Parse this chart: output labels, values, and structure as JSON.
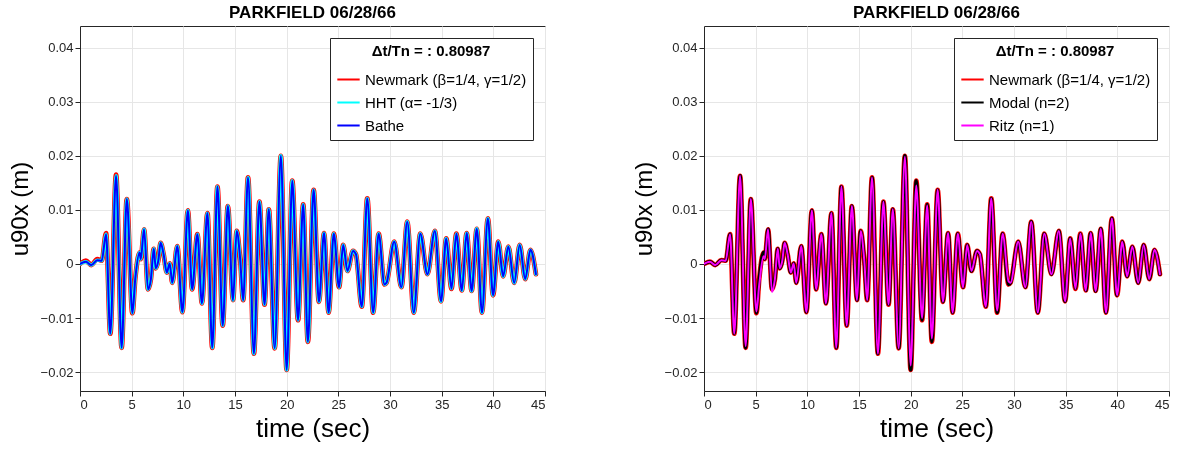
{
  "chart_data": [
    {
      "type": "line",
      "title": "PARKFIELD 06/28/66",
      "xlabel": "time (sec)",
      "ylabel": "u90x (m)",
      "legend_title": "Δt/Tn = : 0.80987",
      "legend": "top right",
      "grid": true,
      "xlim": [
        0,
        45
      ],
      "xticks": [
        0,
        5,
        10,
        15,
        20,
        25,
        30,
        35,
        40,
        45
      ],
      "ylim": [
        -0.0235,
        0.044
      ],
      "yticks": [
        -0.02,
        -0.01,
        0,
        0.01,
        0.02,
        0.03,
        0.04
      ],
      "x": [
        0,
        0.57,
        1.1,
        1.67,
        2.1,
        2.52,
        2.93,
        3.49,
        4.03,
        4.53,
        5.07,
        5.35,
        5.76,
        5.88,
        6.2,
        6.58,
        6.86,
        7.14,
        7.33,
        7.58,
        7.8,
        8.09,
        8.4,
        8.68,
        8.93,
        9.41,
        9.91,
        10.44,
        10.85,
        11.36,
        11.8,
        12.33,
        12.8,
        13.3,
        13.81,
        14.31,
        14.81,
        15.16,
        15.5,
        15.79,
        16.26,
        16.83,
        17.36,
        17.86,
        18.27,
        18.84,
        19.44,
        20.0,
        20.54,
        21.1,
        21.6,
        22.05,
        22.61,
        23.12,
        23.62,
        24.06,
        24.56,
        25.07,
        25.47,
        25.88,
        26.42,
        26.7,
        27.27,
        27.8,
        28.37,
        28.9,
        29.47,
        29.66,
        30.41,
        31.1,
        31.67,
        32.3,
        32.93,
        33.62,
        34.34,
        34.94,
        35.44,
        35.95,
        36.42,
        36.95,
        37.42,
        37.9,
        38.4,
        38.9,
        39.47,
        39.97,
        40.48,
        40.95,
        41.45,
        42.02,
        42.55,
        43.09,
        43.59,
        44.12
      ],
      "series": [
        {
          "name": "Newmark (β=1/4, γ=1/2)",
          "color": "#ff0000",
          "values": [
            0,
            0.0006,
            -0.0002,
            0.0009,
            0.0006,
            0.0057,
            -0.0129,
            0.0165,
            -0.0155,
            0.012,
            -0.0091,
            -0.0027,
            0.0021,
            0.0009,
            0.0064,
            -0.0047,
            -0.0028,
            0.0028,
            -0.0008,
            0.0006,
            0.0039,
            0.0018,
            -0.0016,
            0.0001,
            -0.0035,
            0.0033,
            -0.0089,
            0.0099,
            -0.0047,
            0.0055,
            -0.0073,
            0.0094,
            -0.0155,
            0.0143,
            -0.0114,
            0.0107,
            -0.0067,
            0.0061,
            0.0009,
            -0.0067,
            0.016,
            -0.0166,
            0.0115,
            -0.0075,
            0.0101,
            -0.0156,
            0.02,
            -0.0196,
            0.0154,
            -0.0104,
            0.011,
            -0.0144,
            0.0137,
            -0.007,
            0.0057,
            -0.009,
            0.0056,
            -0.0043,
            0.0035,
            -0.0013,
            0.0024,
            0.0018,
            -0.0079,
            0.0121,
            -0.009,
            0.0056,
            -0.0038,
            -0.0035,
            0.0041,
            -0.0043,
            0.0078,
            -0.009,
            0.0056,
            -0.0019,
            0.0061,
            -0.0069,
            0.0047,
            -0.0046,
            0.0056,
            -0.0049,
            0.0057,
            -0.005,
            0.0065,
            -0.009,
            0.0084,
            -0.0058,
            0.0041,
            -0.0023,
            0.0032,
            -0.0035,
            0.0035,
            -0.0028,
            0.0026,
            -0.0019
          ]
        },
        {
          "name": "HHT (α= -1/3)",
          "color": "#00ffff",
          "values": [
            0,
            0.0004,
            -0.0002,
            0.0007,
            0.0006,
            0.0055,
            -0.0129,
            0.0163,
            -0.0155,
            0.012,
            -0.0091,
            -0.0027,
            0.0021,
            0.0009,
            0.0064,
            -0.0047,
            -0.0028,
            0.0028,
            -0.0008,
            0.0006,
            0.0039,
            0.0018,
            -0.0016,
            0.0001,
            -0.0035,
            0.0033,
            -0.0089,
            0.0099,
            -0.0047,
            0.0055,
            -0.0073,
            0.0094,
            -0.0155,
            0.0143,
            -0.0114,
            0.0107,
            -0.0067,
            0.0061,
            0.0009,
            -0.0067,
            0.016,
            -0.0166,
            0.0115,
            -0.0075,
            0.0101,
            -0.0156,
            0.02,
            -0.0196,
            0.0154,
            -0.0104,
            0.011,
            -0.0144,
            0.0137,
            -0.007,
            0.0057,
            -0.009,
            0.0056,
            -0.0043,
            0.0035,
            -0.0013,
            0.0024,
            0.0018,
            -0.0079,
            0.0121,
            -0.009,
            0.0056,
            -0.0038,
            -0.0035,
            0.0041,
            -0.0043,
            0.0078,
            -0.009,
            0.0056,
            -0.0019,
            0.0061,
            -0.0069,
            0.0047,
            -0.0046,
            0.0056,
            -0.0049,
            0.0057,
            -0.005,
            0.0065,
            -0.009,
            0.0084,
            -0.0058,
            0.0041,
            -0.0023,
            0.0032,
            -0.0035,
            0.0035,
            -0.0028,
            0.0026,
            -0.0019
          ]
        },
        {
          "name": "Bathe",
          "color": "#0000ff",
          "values": [
            0,
            0.0004,
            -0.0002,
            0.0007,
            0.0006,
            0.0055,
            -0.0129,
            0.0163,
            -0.0155,
            0.012,
            -0.0091,
            -0.0027,
            0.0021,
            0.0009,
            0.0064,
            -0.0047,
            -0.0028,
            0.0028,
            -0.0008,
            0.0006,
            0.0039,
            0.0018,
            -0.0016,
            0.0001,
            -0.0035,
            0.0033,
            -0.0089,
            0.0099,
            -0.0047,
            0.0055,
            -0.0073,
            0.0094,
            -0.0155,
            0.0143,
            -0.0114,
            0.0107,
            -0.0067,
            0.0061,
            0.0009,
            -0.0067,
            0.016,
            -0.0166,
            0.0115,
            -0.0075,
            0.0101,
            -0.0156,
            0.02,
            -0.0196,
            0.0154,
            -0.0104,
            0.011,
            -0.0144,
            0.0137,
            -0.007,
            0.0057,
            -0.009,
            0.0056,
            -0.0043,
            0.0035,
            -0.0013,
            0.0024,
            0.0018,
            -0.0079,
            0.0121,
            -0.009,
            0.0056,
            -0.0038,
            -0.0035,
            0.0041,
            -0.0043,
            0.0078,
            -0.009,
            0.0056,
            -0.0019,
            0.0061,
            -0.0069,
            0.0047,
            -0.0046,
            0.0056,
            -0.0049,
            0.0057,
            -0.005,
            0.0065,
            -0.009,
            0.0084,
            -0.0058,
            0.0041,
            -0.0023,
            0.0032,
            -0.0035,
            0.0035,
            -0.0028,
            0.0026,
            -0.0019
          ]
        }
      ]
    },
    {
      "type": "line",
      "title": "PARKFIELD 06/28/66",
      "xlabel": "time (sec)",
      "ylabel": "u90x (m)",
      "legend_title": "Δt/Tn = : 0.80987",
      "legend": "top right",
      "grid": true,
      "xlim": [
        0,
        45
      ],
      "xticks": [
        0,
        5,
        10,
        15,
        20,
        25,
        30,
        35,
        40,
        45
      ],
      "ylim": [
        -0.0235,
        0.044
      ],
      "yticks": [
        -0.02,
        -0.01,
        0,
        0.01,
        0.02,
        0.03,
        0.04
      ],
      "x": [
        0,
        0.57,
        1.1,
        1.67,
        2.1,
        2.52,
        2.93,
        3.49,
        4.03,
        4.53,
        5.07,
        5.35,
        5.76,
        5.88,
        6.2,
        6.58,
        6.86,
        7.14,
        7.33,
        7.58,
        7.8,
        8.09,
        8.4,
        8.68,
        8.93,
        9.41,
        9.91,
        10.44,
        10.85,
        11.36,
        11.8,
        12.33,
        12.8,
        13.3,
        13.81,
        14.31,
        14.81,
        15.16,
        15.5,
        15.79,
        16.26,
        16.83,
        17.36,
        17.86,
        18.27,
        18.84,
        19.44,
        20.0,
        20.54,
        21.1,
        21.6,
        22.05,
        22.61,
        23.12,
        23.62,
        24.06,
        24.56,
        25.07,
        25.47,
        25.88,
        26.42,
        26.7,
        27.27,
        27.8,
        28.37,
        28.9,
        29.47,
        29.66,
        30.41,
        31.1,
        31.67,
        32.3,
        32.93,
        33.62,
        34.34,
        34.94,
        35.44,
        35.95,
        36.42,
        36.95,
        37.42,
        37.9,
        38.4,
        38.9,
        39.47,
        39.97,
        40.48,
        40.95,
        41.45,
        42.02,
        42.55,
        43.09,
        43.59,
        44.12
      ],
      "series": [
        {
          "name": "Newmark (β=1/4, γ=1/2)",
          "color": "#ff0000",
          "values": [
            0,
            0.0004,
            -0.0002,
            0.0007,
            0.0006,
            0.0055,
            -0.0129,
            0.0163,
            -0.0155,
            0.012,
            -0.0091,
            -0.0027,
            0.0021,
            0.0009,
            0.0064,
            -0.0047,
            -0.0028,
            0.0028,
            -0.0008,
            0.0006,
            0.0039,
            0.0018,
            -0.0016,
            0.0001,
            -0.0035,
            0.0033,
            -0.0089,
            0.0099,
            -0.0047,
            0.0055,
            -0.0073,
            0.0094,
            -0.0155,
            0.0143,
            -0.0114,
            0.0107,
            -0.0067,
            0.0061,
            0.0009,
            -0.0067,
            0.016,
            -0.0166,
            0.0115,
            -0.0075,
            0.0101,
            -0.0156,
            0.02,
            -0.0196,
            0.0154,
            -0.0104,
            0.011,
            -0.0144,
            0.0137,
            -0.007,
            0.0057,
            -0.009,
            0.0056,
            -0.0043,
            0.0035,
            -0.0013,
            0.0024,
            0.0018,
            -0.0079,
            0.0121,
            -0.009,
            0.0056,
            -0.0038,
            -0.0035,
            0.0041,
            -0.0043,
            0.0078,
            -0.009,
            0.0056,
            -0.0019,
            0.0061,
            -0.0069,
            0.0047,
            -0.0046,
            0.0056,
            -0.0049,
            0.0057,
            -0.005,
            0.0065,
            -0.009,
            0.0084,
            -0.0058,
            0.0041,
            -0.0023,
            0.0032,
            -0.0035,
            0.0035,
            -0.0028,
            0.0026,
            -0.0019
          ]
        },
        {
          "name": "Modal (n=2)",
          "color": "#000000",
          "values": [
            0,
            0.0004,
            -0.0002,
            0.0007,
            0.0006,
            0.0055,
            -0.0129,
            0.0163,
            -0.0155,
            0.012,
            -0.0091,
            -0.0027,
            0.0021,
            0.0009,
            0.0064,
            -0.0047,
            -0.0028,
            0.0028,
            -0.0008,
            0.0006,
            0.0039,
            0.0018,
            -0.0016,
            0.0001,
            -0.0035,
            0.0033,
            -0.0089,
            0.0099,
            -0.0047,
            0.0055,
            -0.0073,
            0.0094,
            -0.0155,
            0.0143,
            -0.0114,
            0.0107,
            -0.0067,
            0.0061,
            0.0009,
            -0.0067,
            0.016,
            -0.0166,
            0.0115,
            -0.0075,
            0.0101,
            -0.0156,
            0.02,
            -0.0196,
            0.0154,
            -0.0104,
            0.011,
            -0.0144,
            0.0137,
            -0.007,
            0.0057,
            -0.009,
            0.0056,
            -0.0043,
            0.0035,
            -0.0013,
            0.0024,
            0.0018,
            -0.0079,
            0.0121,
            -0.009,
            0.0056,
            -0.0038,
            -0.0035,
            0.0041,
            -0.0043,
            0.0078,
            -0.009,
            0.0056,
            -0.0019,
            0.0061,
            -0.0069,
            0.0047,
            -0.0046,
            0.0056,
            -0.0049,
            0.0057,
            -0.005,
            0.0065,
            -0.009,
            0.0084,
            -0.0058,
            0.0041,
            -0.0023,
            0.0032,
            -0.0035,
            0.0035,
            -0.0028,
            0.0026,
            -0.0019
          ]
        },
        {
          "name": "Ritz (n=1)",
          "color": "#ff00ff",
          "values": [
            0,
            0.0004,
            -0.0002,
            0.0007,
            0.0006,
            0.0055,
            -0.0129,
            0.0163,
            -0.0152,
            0.012,
            -0.0088,
            -0.0038,
            0.0014,
            0.0009,
            0.0064,
            -0.0052,
            -0.0028,
            0.0028,
            -0.0008,
            0.0006,
            0.0039,
            0.0018,
            -0.0016,
            0.0001,
            -0.0035,
            0.0033,
            -0.0089,
            0.0099,
            -0.0047,
            0.0055,
            -0.0073,
            0.0094,
            -0.0155,
            0.0143,
            -0.0114,
            0.0107,
            -0.0067,
            0.0061,
            0.0009,
            -0.0067,
            0.016,
            -0.0166,
            0.0115,
            -0.0075,
            0.0101,
            -0.0156,
            0.0198,
            -0.0188,
            0.0145,
            -0.01,
            0.0108,
            -0.0138,
            0.0137,
            -0.007,
            0.0057,
            -0.009,
            0.0056,
            -0.0043,
            0.0035,
            -0.0013,
            0.0024,
            0.0018,
            -0.0079,
            0.0121,
            -0.0086,
            0.0056,
            -0.0032,
            -0.0035,
            0.0041,
            -0.0043,
            0.0078,
            -0.009,
            0.0056,
            -0.0019,
            0.0061,
            -0.0069,
            0.0047,
            -0.0046,
            0.0056,
            -0.0049,
            0.0057,
            -0.005,
            0.0065,
            -0.009,
            0.0084,
            -0.0058,
            0.0041,
            -0.0023,
            0.0032,
            -0.0035,
            0.0035,
            -0.0028,
            0.0026,
            -0.0019
          ]
        }
      ]
    }
  ]
}
